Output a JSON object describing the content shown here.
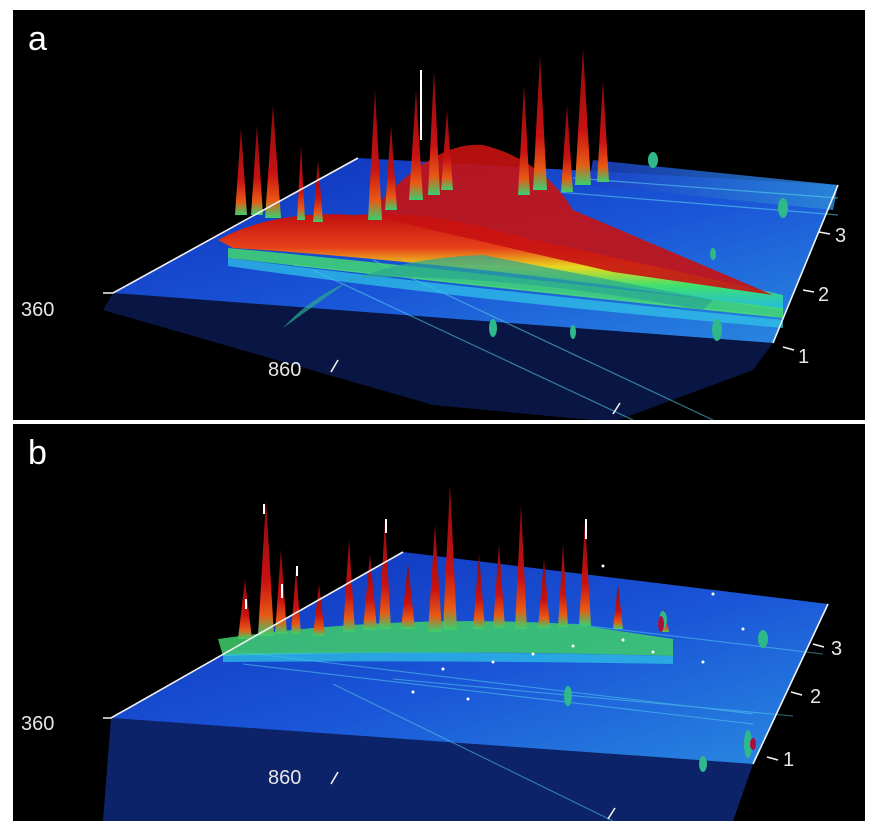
{
  "panels": [
    {
      "id": "a",
      "label": "a",
      "x_tick_labels": [
        "360",
        "860"
      ],
      "y_tick_labels": [
        "1",
        "2",
        "3"
      ]
    },
    {
      "id": "b",
      "label": "b",
      "x_tick_labels": [
        "360",
        "860"
      ],
      "y_tick_labels": [
        "1",
        "2",
        "3"
      ]
    }
  ],
  "chart_data": [
    {
      "type": "surface",
      "panel": "a",
      "title": "",
      "xlabel": "",
      "ylabel": "",
      "zlabel": "",
      "x_ticks": [
        360,
        860
      ],
      "y_ticks": [
        1,
        2,
        3
      ],
      "colormap": [
        "#1a33d8",
        "#1fb8e8",
        "#39e07a",
        "#e8e21e",
        "#f07a14",
        "#d81a10",
        "#9a0d0d",
        "#ffffff"
      ],
      "background": "#000000"
    },
    {
      "type": "surface",
      "panel": "b",
      "title": "",
      "xlabel": "",
      "ylabel": "",
      "zlabel": "",
      "x_ticks": [
        360,
        860
      ],
      "y_ticks": [
        1,
        2,
        3
      ],
      "colormap": [
        "#1a33d8",
        "#1fb8e8",
        "#39e07a",
        "#e8e21e",
        "#f07a14",
        "#d81a10",
        "#9a0d0d",
        "#ffffff"
      ],
      "background": "#000000"
    }
  ]
}
